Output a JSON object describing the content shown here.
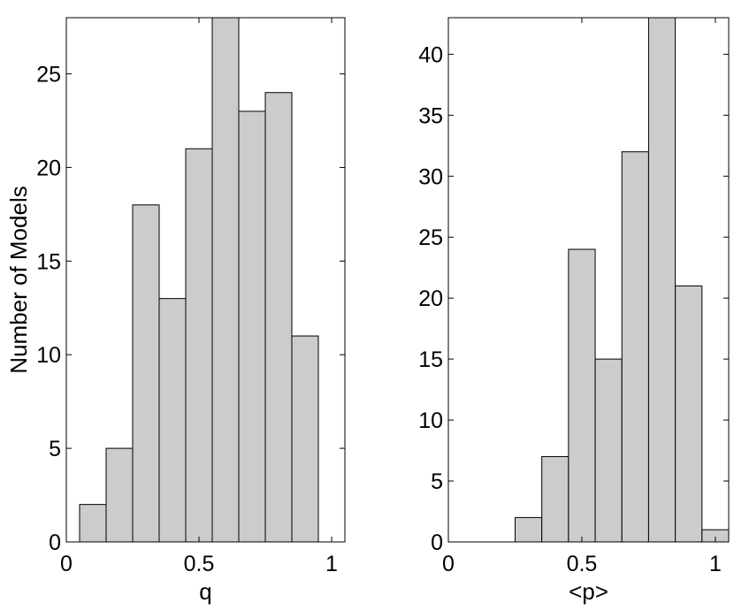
{
  "chart_data": [
    {
      "type": "bar",
      "xlabel": "q",
      "ylabel": "Number of Models",
      "xlim": [
        0,
        1.05
      ],
      "ylim": [
        0,
        28
      ],
      "xticks": [
        "0",
        "0.5",
        "1"
      ],
      "xtick_values": [
        0,
        0.5,
        1
      ],
      "yticks": [
        "0",
        "5",
        "10",
        "15",
        "20",
        "25"
      ],
      "ytick_values": [
        0,
        5,
        10,
        15,
        20,
        25
      ],
      "bin_width": 0.1,
      "bin_centers": [
        0.1,
        0.2,
        0.3,
        0.4,
        0.5,
        0.6,
        0.7,
        0.8,
        0.9
      ],
      "values": [
        2,
        5,
        18,
        13,
        21,
        29,
        23,
        24,
        11
      ],
      "bar_color": "#cccccc",
      "grid": false
    },
    {
      "type": "bar",
      "xlabel": "<p>",
      "ylabel": "",
      "xlim": [
        0,
        1.05
      ],
      "ylim": [
        0,
        43
      ],
      "xticks": [
        "0",
        "0.5",
        "1"
      ],
      "xtick_values": [
        0,
        0.5,
        1
      ],
      "yticks": [
        "0",
        "5",
        "10",
        "15",
        "20",
        "25",
        "30",
        "35",
        "40"
      ],
      "ytick_values": [
        0,
        5,
        10,
        15,
        20,
        25,
        30,
        35,
        40
      ],
      "bin_width": 0.1,
      "bin_centers": [
        0.1,
        0.2,
        0.3,
        0.4,
        0.5,
        0.6,
        0.7,
        0.8,
        0.9,
        1.0
      ],
      "values": [
        0,
        0,
        2,
        7,
        24,
        15,
        32,
        44,
        21,
        1
      ],
      "bar_color": "#cccccc",
      "grid": false
    }
  ]
}
